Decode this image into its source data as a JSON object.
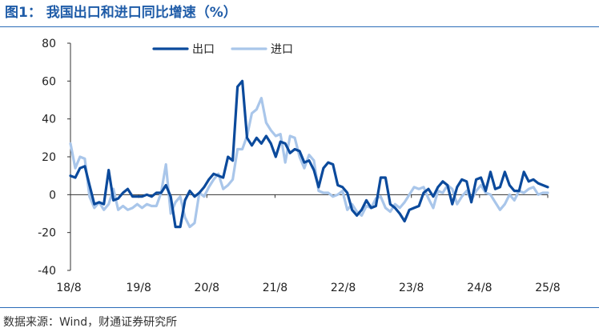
{
  "header": {
    "title": "图1： 我国出口和进口同比增速（%）"
  },
  "footer": {
    "source": "数据来源：Wind，财通证券研究所"
  },
  "colors": {
    "export": "#0b4a9c",
    "import": "#a9c6ea",
    "title": "#1f5ca8",
    "rule": "#2b6cb8"
  },
  "chart_data": {
    "type": "line",
    "title": "我国出口和进口同比增速（%）",
    "xlabel": "",
    "ylabel": "",
    "ylim": [
      -40,
      80
    ],
    "yticks": [
      "80",
      "60",
      "40",
      "20",
      "0",
      "-20",
      "-40"
    ],
    "ytick_values": [
      80,
      60,
      40,
      20,
      0,
      -20,
      -40
    ],
    "xticks": [
      "18/8",
      "19/8",
      "20/8",
      "21/8",
      "22/8",
      "23/8",
      "24/8",
      "25/8"
    ],
    "grid": false,
    "legend": "top",
    "x_start": "18/8",
    "x_end": "25/8",
    "series": [
      {
        "name": "出口",
        "values": [
          10,
          9,
          14,
          15,
          5,
          -5,
          -4,
          -5,
          13,
          -3,
          -2,
          1,
          3,
          -1,
          -1,
          -1,
          0,
          -1,
          1,
          1,
          5,
          -1,
          -17,
          -17,
          -3,
          2,
          -1,
          1,
          4,
          8,
          11,
          10,
          9,
          20,
          18,
          57,
          60,
          30,
          26,
          30,
          27,
          31,
          27,
          20,
          28,
          27,
          22,
          24,
          23,
          17,
          18,
          13,
          4,
          14,
          17,
          16,
          5,
          4,
          1,
          -8,
          -11,
          -8,
          -3,
          -7,
          -6,
          9,
          9,
          -5,
          -7,
          -10,
          -14,
          -8,
          -7,
          -6,
          1,
          3,
          -1,
          4,
          7,
          5,
          -5,
          4,
          8,
          7,
          -4,
          8,
          9,
          2,
          12,
          3,
          4,
          12,
          5,
          2,
          2,
          12,
          7,
          8,
          6,
          5,
          4
        ]
      },
      {
        "name": "进口",
        "values": [
          27,
          14,
          20,
          19,
          -1,
          -7,
          -4,
          -8,
          -5,
          3,
          -8,
          -6,
          -8,
          -7,
          -5,
          -7,
          -5,
          -6,
          -6,
          1,
          16,
          -10,
          -4,
          -1,
          -12,
          -17,
          -15,
          1,
          -1,
          4,
          8,
          11,
          3,
          5,
          8,
          24,
          24,
          31,
          43,
          45,
          51,
          38,
          34,
          31,
          32,
          17,
          31,
          30,
          20,
          14,
          21,
          18,
          2,
          1,
          1,
          -1,
          0,
          2,
          -8,
          -5,
          -9,
          -11,
          -6,
          -7,
          -2,
          -1,
          -7,
          -9,
          -5,
          -7,
          -4,
          0,
          4,
          3,
          4,
          -2,
          -7,
          2,
          1,
          5,
          3,
          -5,
          -1,
          2,
          -3,
          2,
          5,
          1,
          0,
          -4,
          -8,
          -5,
          0,
          -3,
          2,
          1,
          3,
          4,
          0,
          1,
          1
        ]
      }
    ]
  }
}
